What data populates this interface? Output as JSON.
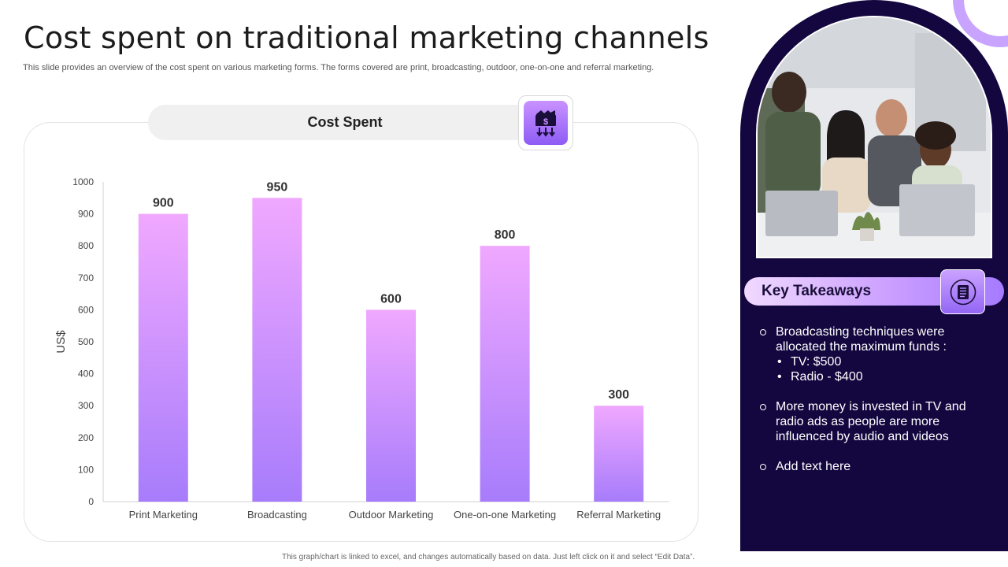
{
  "page": {
    "title": "Cost spent on traditional marketing channels",
    "subtitle": "This slide provides an overview of the cost spent on various marketing forms. The forms covered are print, broadcasting, outdoor, one-on-one and referral marketing.",
    "footnote": "This graph/chart is linked to excel, and changes automatically based on data. Just left click on it and select “Edit Data”."
  },
  "chart_header": {
    "label": "Cost Spent",
    "icon": "money-transfer-icon"
  },
  "chart_data": {
    "type": "bar",
    "title": "Cost Spent",
    "categories": [
      "Print Marketing",
      "Broadcasting",
      "Outdoor Marketing",
      "One-on-one Marketing",
      "Referral Marketing"
    ],
    "values": [
      900,
      950,
      600,
      800,
      300
    ],
    "data_labels": [
      "900",
      "950",
      "600",
      "800",
      "300"
    ],
    "ylabel": "US$",
    "xlabel": "",
    "ylim": [
      0,
      1000
    ],
    "yticks": [
      0,
      100,
      200,
      300,
      400,
      500,
      600,
      700,
      800,
      900,
      1000
    ],
    "grid": false,
    "legend": "none",
    "bar_color_top": "#f0a8ff",
    "bar_color_bottom": "#a77cfb"
  },
  "side_panel": {
    "photo_alt": "team-meeting-photo",
    "key_takeaways": {
      "label": "Key Takeaways",
      "icon": "notebook-icon",
      "items": [
        {
          "text": "Broadcasting techniques were allocated the maximum funds :",
          "sub": [
            "TV: $500",
            "Radio - $400"
          ]
        },
        {
          "text": "More money is invested in TV and radio ads as people are more influenced by audio and videos"
        },
        {
          "text": "Add text here"
        }
      ]
    },
    "colors": {
      "panel_bg": "#14063f",
      "accent": "#a57bff"
    }
  }
}
